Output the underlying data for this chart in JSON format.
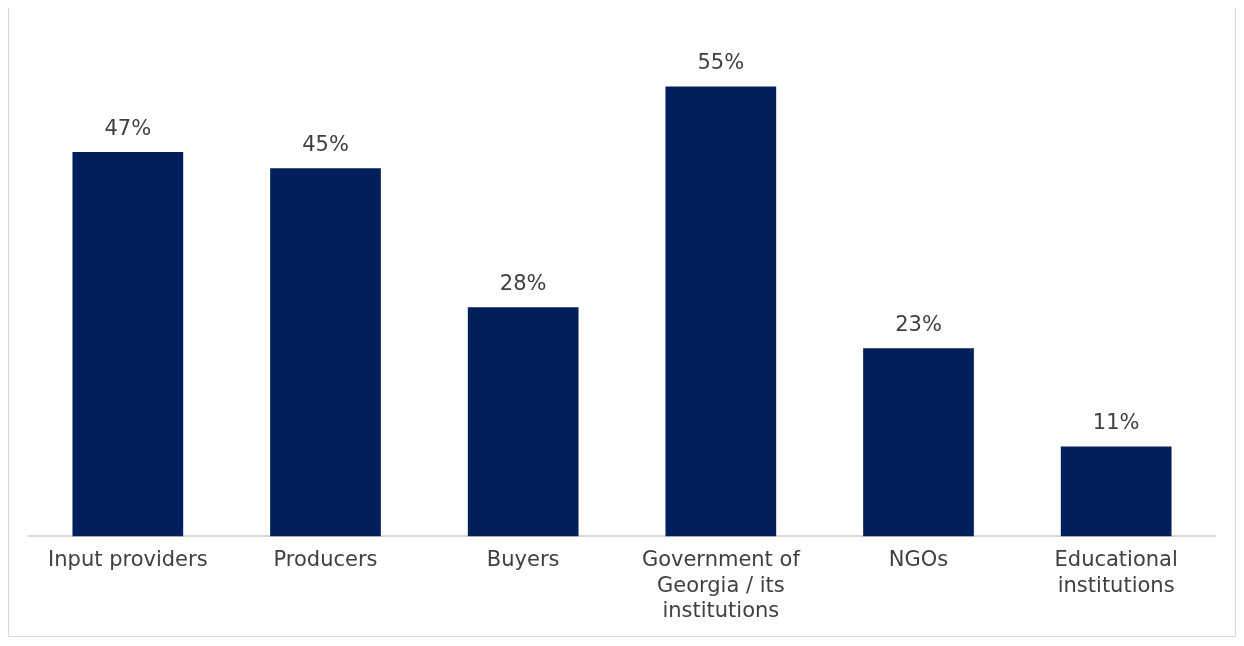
{
  "chart_data": {
    "type": "bar",
    "categories": [
      "Input providers",
      "Producers",
      "Buyers",
      "Government of Georgia / its institutions",
      "NGOs",
      "Educational institutions"
    ],
    "values": [
      47,
      45,
      28,
      55,
      23,
      11
    ],
    "value_labels": [
      "47%",
      "45%",
      "28%",
      "55%",
      "23%",
      "11%"
    ],
    "color": "#001f5b",
    "grid": false,
    "legend": false
  }
}
